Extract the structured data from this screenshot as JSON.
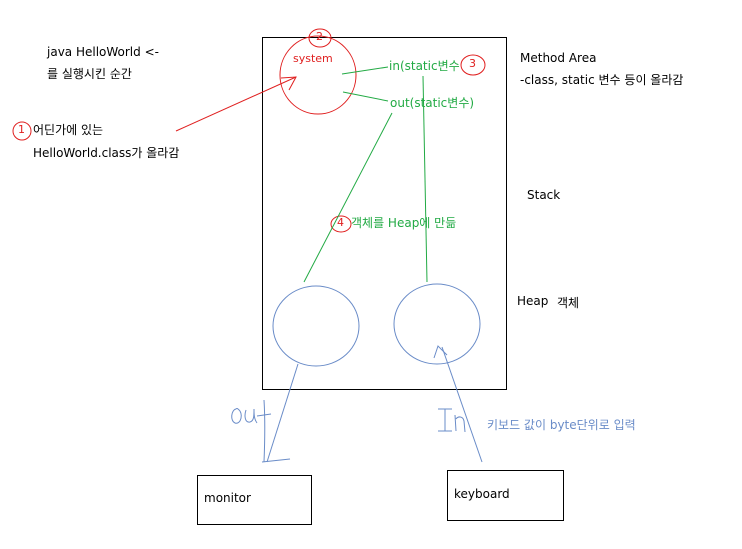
{
  "notes": {
    "java_cmd": "java HelloWorld <-",
    "run_moment": "를 실행시킨 순간",
    "somewhere": "어딘가에 있는",
    "class_loaded": "HelloWorld.class가 올라감"
  },
  "regions": {
    "method_area": "Method Area",
    "method_area_desc": "-class, static 변수 등이 올라감",
    "stack": "Stack",
    "heap": "Heap",
    "heap_desc": "객체"
  },
  "labels": {
    "system": "system",
    "in_static": "in(static변수",
    "out_static": "out(static변수)",
    "heap_make": "객체를 Heap에 만듦",
    "out_hand": "out",
    "in_hand": "In",
    "keyboard_desc": "키보드 값이 byte단위로 입력"
  },
  "steps": {
    "s1": "1",
    "s2": "2",
    "s3": "3",
    "s4": "4"
  },
  "devices": {
    "monitor": "monitor",
    "keyboard": "keyboard"
  },
  "colors": {
    "red": "#e02020",
    "green": "#22aa44",
    "blue": "#6a8cc8",
    "black": "#000000"
  }
}
